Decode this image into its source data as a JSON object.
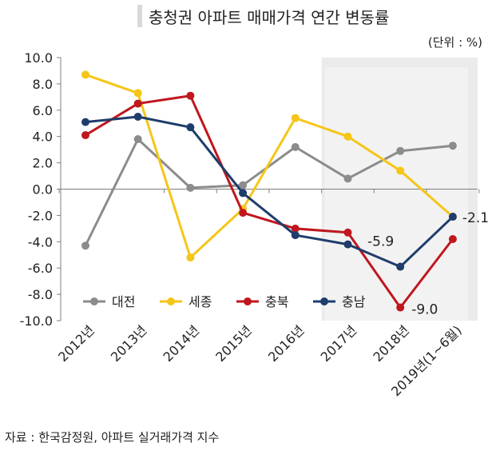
{
  "chart_data": {
    "type": "line",
    "title": "충청권 아파트 매매가격 연간 변동률",
    "unit_label": "(단위 : %)",
    "source": "자료 : 한국감정원, 아파트 실거래가격 지수",
    "categories": [
      "2012년",
      "2013년",
      "2014년",
      "2015년",
      "2016년",
      "2017년",
      "2018년",
      "2019년(1~6월)"
    ],
    "ylim": [
      -10.0,
      10.0
    ],
    "yticks": [
      "10.0",
      "8.0",
      "6.0",
      "4.0",
      "2.0",
      "0.0",
      "-2.0",
      "-4.0",
      "-6.0",
      "-8.0",
      "-10.0"
    ],
    "shaded_categories": [
      "2017년",
      "2018년",
      "2019년(1~6월)"
    ],
    "legend_position": "bottom-left",
    "series": [
      {
        "name": "대전",
        "color": "#8c8c8c",
        "values": [
          -4.3,
          3.8,
          0.1,
          0.3,
          3.2,
          0.8,
          2.9,
          3.3
        ]
      },
      {
        "name": "세종",
        "color": "#f5c518",
        "values": [
          8.7,
          7.3,
          -5.2,
          -1.5,
          5.4,
          4.0,
          1.4,
          -2.1
        ]
      },
      {
        "name": "충북",
        "color": "#c0161d",
        "values": [
          4.1,
          6.5,
          7.1,
          -1.8,
          -3.0,
          -3.3,
          -9.0,
          -3.8
        ]
      },
      {
        "name": "충남",
        "color": "#1f3d6b",
        "values": [
          5.1,
          5.5,
          4.7,
          -0.3,
          -3.5,
          -4.2,
          -5.9,
          -2.1
        ]
      }
    ],
    "annotations": [
      "-2.1",
      "-5.9",
      "-9.0"
    ]
  }
}
